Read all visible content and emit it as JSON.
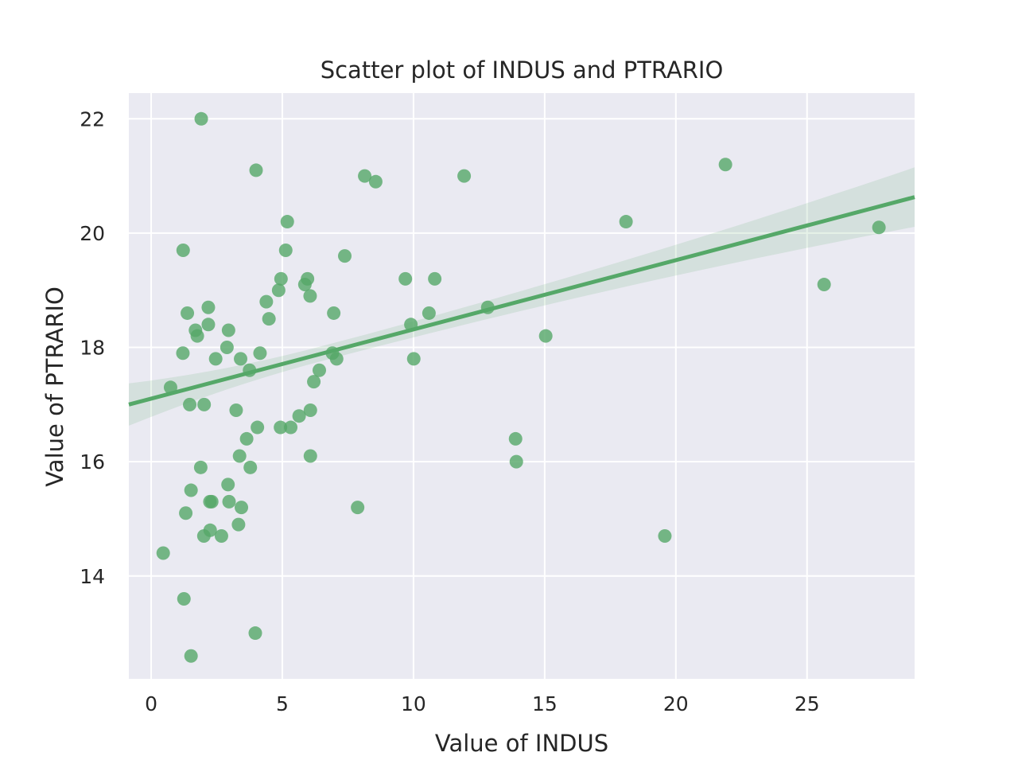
{
  "chart_data": {
    "type": "scatter",
    "title": "Scatter plot of INDUS and PTRARIO",
    "xlabel": "Value of INDUS",
    "ylabel": "Value of PTRARIO",
    "xlim": [
      -0.85,
      29.1
    ],
    "ylim": [
      12.2,
      22.45
    ],
    "xticks": [
      0,
      5,
      10,
      15,
      20,
      25
    ],
    "yticks": [
      14,
      16,
      18,
      20,
      22
    ],
    "grid": true,
    "legend": "none",
    "colors": {
      "plot_background": "#eaeaf2",
      "point": "#55a868",
      "regression_line": "#55a868",
      "confidence_band": "#55a868"
    },
    "regression": {
      "x": [
        -0.85,
        29.1
      ],
      "y": [
        17.0,
        20.63
      ],
      "ci_lower": [
        16.63,
        20.08
      ],
      "ci_upper": [
        17.37,
        21.12
      ]
    },
    "points": {
      "x": [
        0.46,
        0.74,
        1.21,
        1.22,
        1.25,
        1.32,
        1.38,
        1.47,
        1.52,
        1.52,
        1.69,
        1.76,
        1.89,
        1.91,
        2.01,
        2.02,
        2.18,
        2.18,
        2.24,
        2.25,
        2.31,
        2.46,
        2.68,
        2.89,
        2.93,
        2.95,
        2.97,
        3.24,
        3.33,
        3.37,
        3.41,
        3.44,
        3.64,
        3.75,
        3.78,
        3.97,
        4.0,
        4.05,
        4.15,
        4.39,
        4.49,
        4.86,
        4.93,
        4.95,
        5.13,
        5.19,
        5.32,
        5.64,
        5.86,
        5.96,
        6.06,
        6.07,
        6.07,
        6.2,
        6.41,
        6.91,
        6.96,
        7.07,
        7.38,
        7.87,
        8.14,
        8.56,
        9.69,
        9.9,
        10.01,
        10.59,
        10.81,
        11.93,
        12.83,
        13.89,
        13.92,
        15.04,
        18.1,
        19.58,
        21.89,
        25.65,
        27.74
      ],
      "y": [
        14.4,
        17.3,
        17.9,
        19.7,
        13.6,
        15.1,
        18.6,
        17.0,
        12.6,
        15.5,
        18.3,
        18.2,
        15.9,
        22.0,
        14.7,
        17.0,
        18.7,
        18.4,
        15.3,
        14.8,
        15.3,
        17.8,
        14.7,
        18.0,
        15.6,
        18.3,
        15.3,
        16.9,
        14.9,
        16.1,
        17.8,
        15.2,
        16.4,
        17.6,
        15.9,
        13.0,
        21.1,
        16.6,
        17.9,
        18.8,
        18.5,
        19.0,
        16.6,
        19.2,
        19.7,
        20.2,
        16.6,
        16.8,
        19.1,
        19.2,
        18.9,
        16.9,
        16.1,
        17.4,
        17.6,
        17.9,
        18.6,
        17.8,
        19.6,
        15.2,
        21.0,
        20.9,
        19.2,
        18.4,
        17.8,
        18.6,
        19.2,
        21.0,
        18.7,
        16.4,
        16.0,
        18.2,
        20.2,
        14.7,
        21.2,
        19.1,
        20.1
      ]
    }
  }
}
